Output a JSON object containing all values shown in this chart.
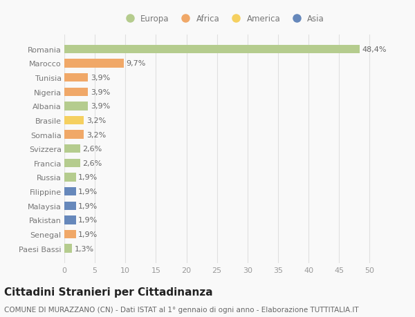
{
  "countries": [
    "Paesi Bassi",
    "Senegal",
    "Pakistan",
    "Malaysia",
    "Filippine",
    "Russia",
    "Francia",
    "Svizzera",
    "Somalia",
    "Brasile",
    "Albania",
    "Nigeria",
    "Tunisia",
    "Marocco",
    "Romania"
  ],
  "values": [
    1.3,
    1.9,
    1.9,
    1.9,
    1.9,
    1.9,
    2.6,
    2.6,
    3.2,
    3.2,
    3.9,
    3.9,
    3.9,
    9.7,
    48.4
  ],
  "labels": [
    "1,3%",
    "1,9%",
    "1,9%",
    "1,9%",
    "1,9%",
    "1,9%",
    "2,6%",
    "2,6%",
    "3,2%",
    "3,2%",
    "3,9%",
    "3,9%",
    "3,9%",
    "9,7%",
    "48,4%"
  ],
  "colors": [
    "#b5cc8e",
    "#f0a868",
    "#6688bb",
    "#6688bb",
    "#6688bb",
    "#b5cc8e",
    "#b5cc8e",
    "#b5cc8e",
    "#f0a868",
    "#f5d060",
    "#b5cc8e",
    "#f0a868",
    "#f0a868",
    "#f0a868",
    "#b5cc8e"
  ],
  "continent_colors": {
    "Europa": "#b5cc8e",
    "Africa": "#f0a868",
    "America": "#f5d060",
    "Asia": "#6688bb"
  },
  "title": "Cittadini Stranieri per Cittadinanza",
  "subtitle": "COMUNE DI MURAZZANO (CN) - Dati ISTAT al 1° gennaio di ogni anno - Elaborazione TUTTITALIA.IT",
  "xlim": [
    0,
    52
  ],
  "xticks": [
    0,
    5,
    10,
    15,
    20,
    25,
    30,
    35,
    40,
    45,
    50
  ],
  "background_color": "#f9f9f9",
  "grid_color": "#e0e0e0",
  "bar_height": 0.6,
  "label_fontsize": 8,
  "tick_fontsize": 8,
  "title_fontsize": 11,
  "subtitle_fontsize": 7.5
}
